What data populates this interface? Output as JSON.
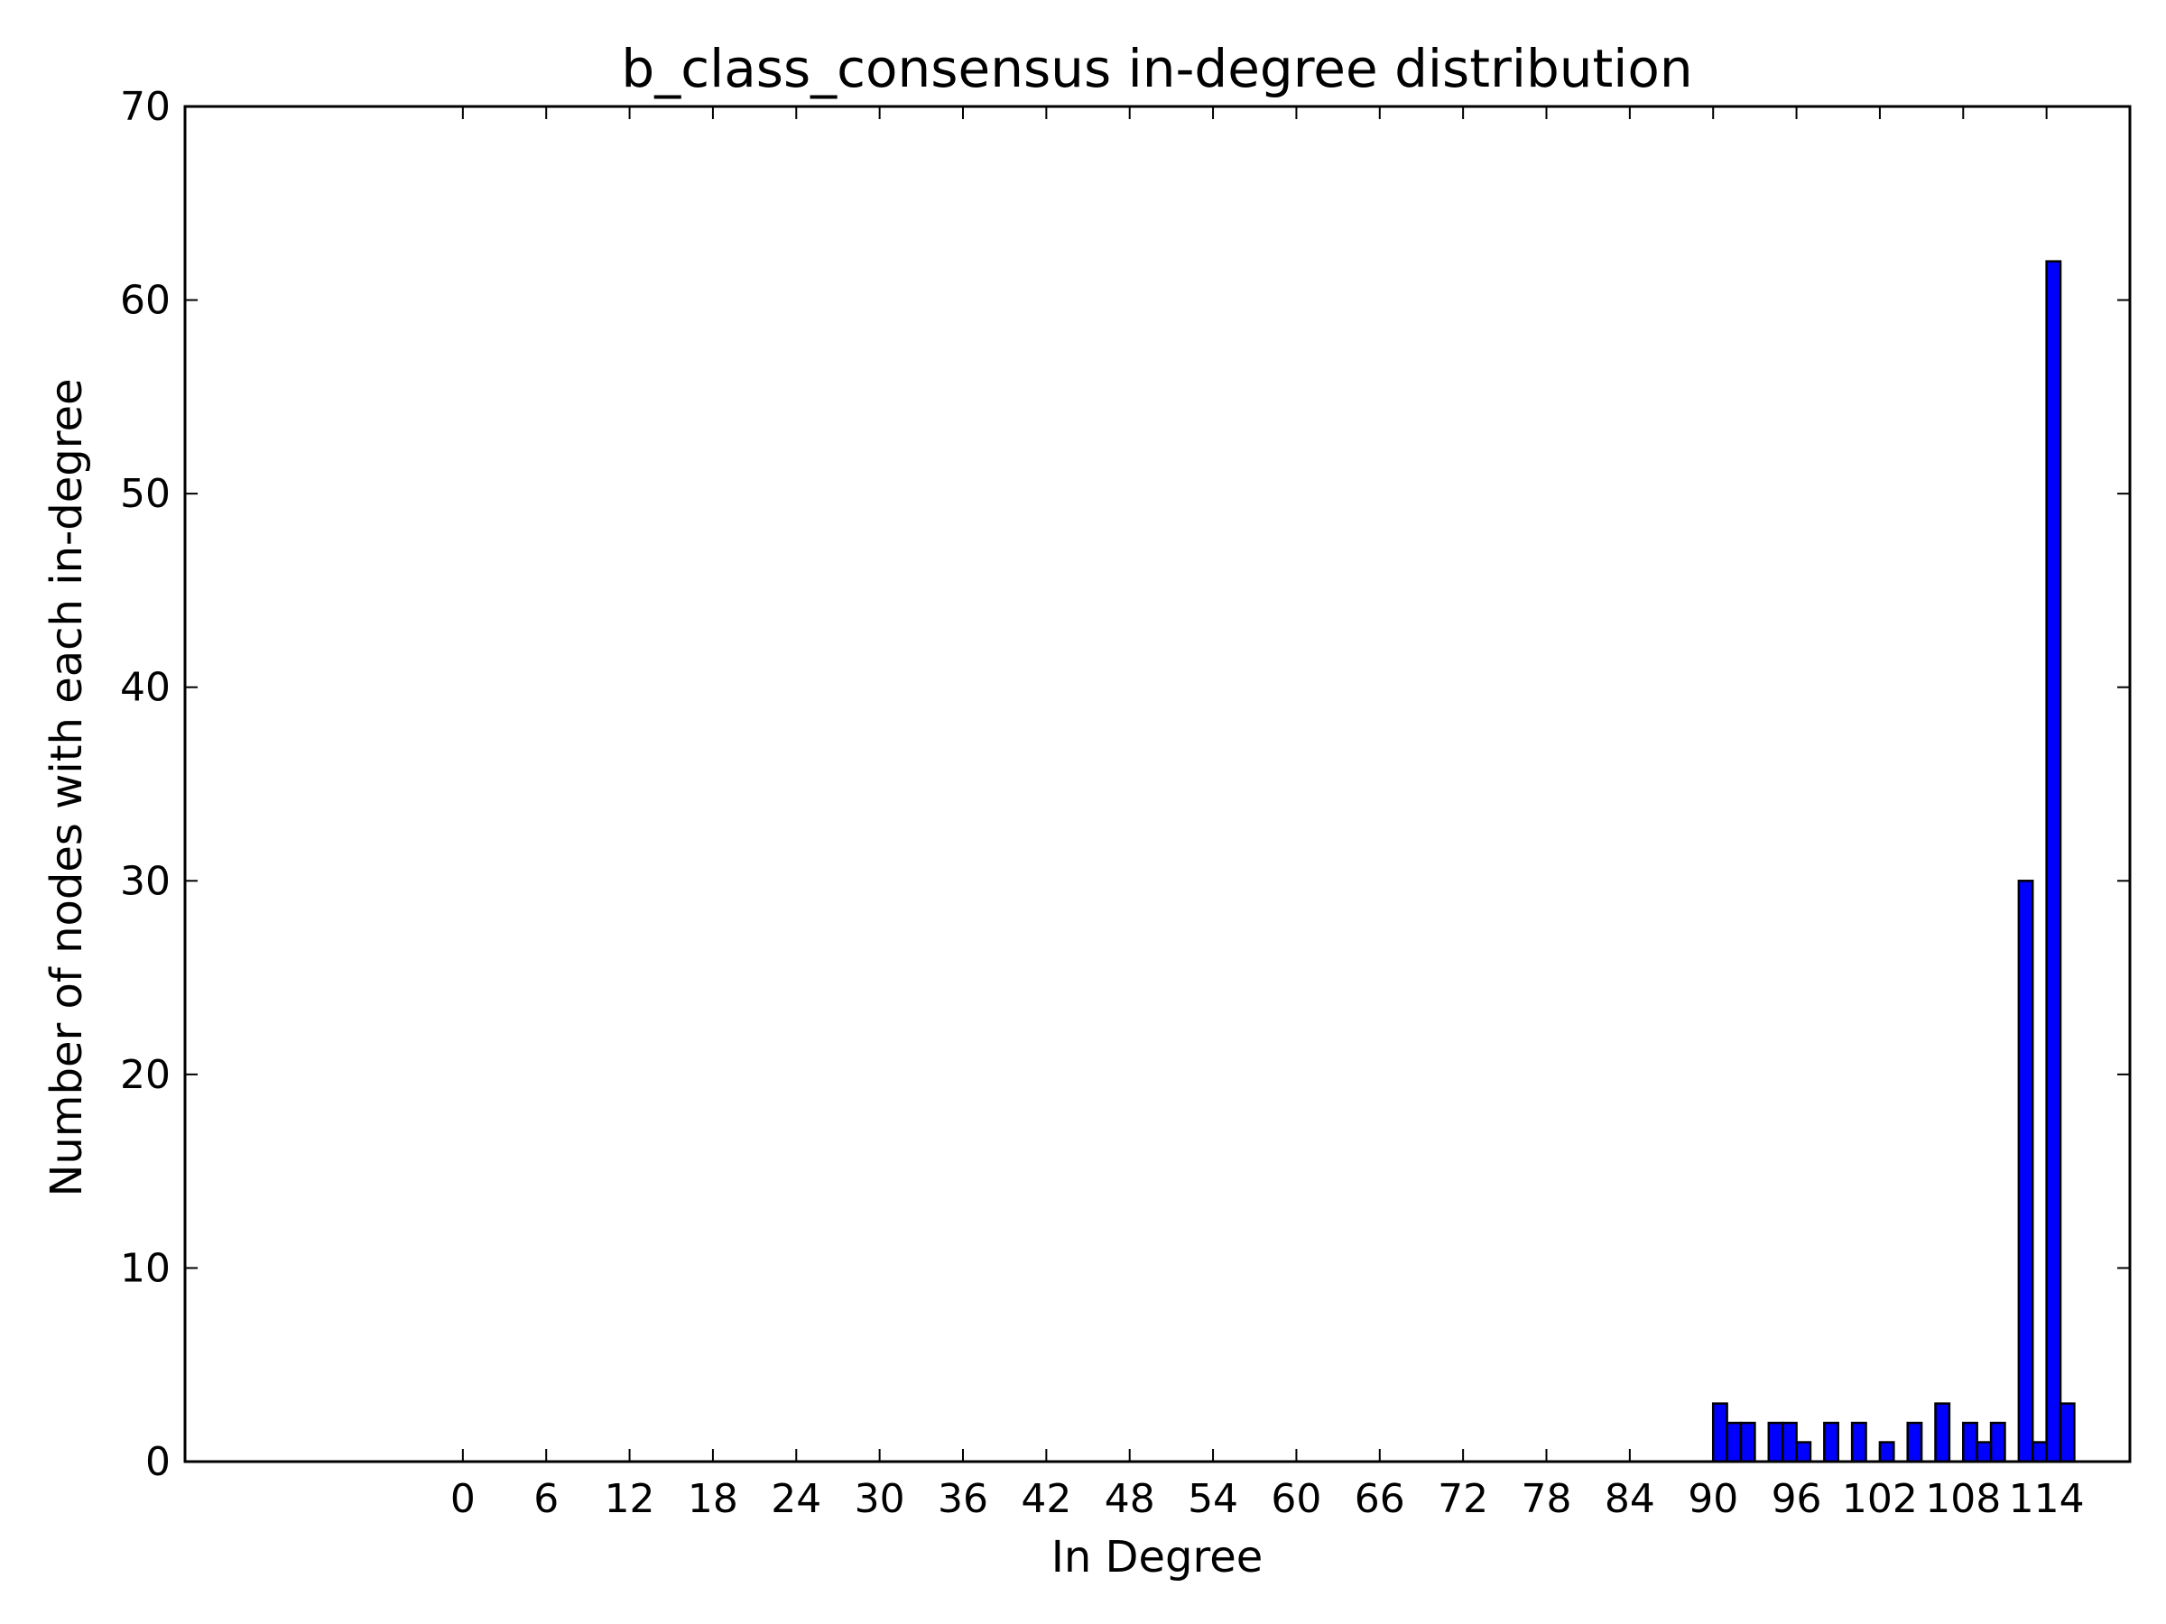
{
  "chart_data": {
    "type": "bar",
    "title": "b_class_consensus in-degree distribution",
    "xlabel": "In Degree",
    "ylabel": "Number of nodes with each in-degree",
    "xlim": [
      -20,
      120
    ],
    "ylim": [
      0,
      70
    ],
    "x_ticks": [
      0,
      6,
      12,
      18,
      24,
      30,
      36,
      42,
      48,
      54,
      60,
      66,
      72,
      78,
      84,
      90,
      96,
      102,
      108,
      114
    ],
    "x_tick_labels": [
      "0",
      "6",
      "12",
      "18",
      "24",
      "30",
      "36",
      "42",
      "48",
      "54",
      "60",
      "66",
      "72",
      "78",
      "84",
      "90",
      "96",
      "102",
      "108",
      "114"
    ],
    "y_ticks": [
      0,
      10,
      20,
      30,
      40,
      50,
      60,
      70
    ],
    "y_tick_labels": [
      "0",
      "10",
      "20",
      "30",
      "40",
      "50",
      "60",
      "70"
    ],
    "bar_width": 1,
    "grid": false,
    "bar_color": "#0000ff",
    "x": [
      90,
      91,
      92,
      94,
      95,
      96,
      98,
      100,
      102,
      104,
      106,
      108,
      109,
      110,
      112,
      113,
      114,
      115
    ],
    "values": [
      3,
      2,
      2,
      2,
      2,
      1,
      2,
      2,
      1,
      2,
      3,
      2,
      1,
      2,
      30,
      1,
      62,
      3
    ]
  }
}
